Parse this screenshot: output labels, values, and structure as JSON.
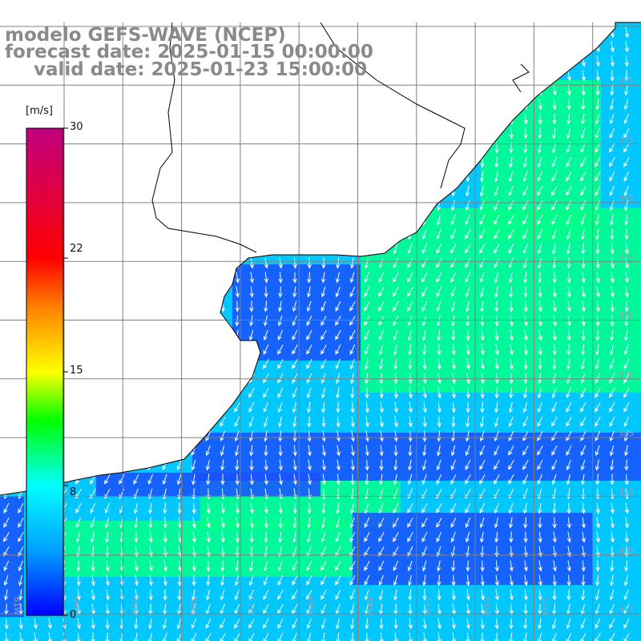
{
  "title": {
    "line1": "modelo GEFS-WAVE (NCEP)",
    "line2": "forecast date: 2025-01-15 00:00:00",
    "line3": "valid date: 2025-01-23 15:00:00"
  },
  "colorbar": {
    "unit": "[m/s]",
    "min": 0,
    "max": 30,
    "ticks": [
      "30",
      "22",
      "15",
      "8",
      "0"
    ],
    "tick_values": [
      30,
      22,
      15,
      8,
      0
    ],
    "color_stops": [
      {
        "value": 0,
        "color": "#0000ff"
      },
      {
        "value": 4,
        "color": "#00a0ff"
      },
      {
        "value": 8,
        "color": "#00ffff"
      },
      {
        "value": 12,
        "color": "#00ff00"
      },
      {
        "value": 15,
        "color": "#ffff00"
      },
      {
        "value": 19,
        "color": "#ff8000"
      },
      {
        "value": 22,
        "color": "#ff0000"
      },
      {
        "value": 30,
        "color": "#c00080"
      }
    ]
  },
  "map": {
    "lat_labels": [
      "32S",
      "33S",
      "34S",
      "35S",
      "36S",
      "37S",
      "38S",
      "39S",
      "40S",
      "41S"
    ],
    "lon_labels": [
      "61W",
      "60W",
      "59W",
      "58W",
      "57W",
      "56W",
      "55W",
      "54W",
      "53W",
      "52W"
    ],
    "colors": {
      "land": "#ffffff",
      "coastline": "#000000",
      "grid": "#808080",
      "arrows": "#ffffff",
      "title": "#8a8a8a"
    },
    "field_description_colors": {
      "calm": "#1a50ff",
      "moderate": "#00c8ff",
      "strong": "#00ff88"
    }
  }
}
